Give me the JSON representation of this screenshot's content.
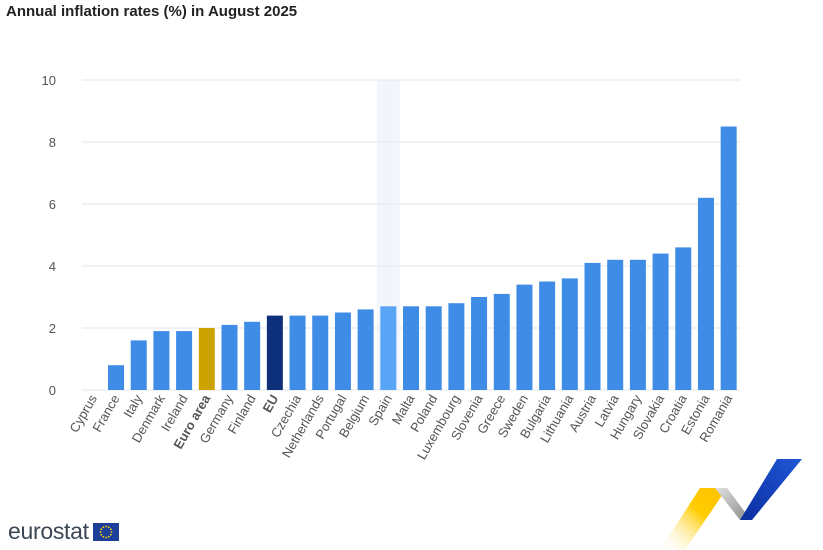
{
  "title": "Annual inflation rates (%) in August 2025",
  "logo": {
    "text": "eurostat"
  },
  "colors": {
    "country": "#3e8ce6",
    "euro_area": "#cca300",
    "eu": "#0e2f7a",
    "highlight": "#5aa4f5",
    "highlight_band": "#f3f5fc",
    "grid": "#e6e6e6"
  },
  "chart_data": {
    "type": "bar",
    "title": "Annual inflation rates (%) in August 2025",
    "xlabel": "",
    "ylabel": "",
    "ylim": [
      0,
      10
    ],
    "yticks": [
      0,
      2,
      4,
      6,
      8,
      10
    ],
    "grid": true,
    "highlighted_category": "Spain",
    "bold_categories": [
      "Euro area",
      "EU"
    ],
    "categories": [
      "Cyprus",
      "France",
      "Italy",
      "Denmark",
      "Ireland",
      "Euro area",
      "Germany",
      "Finland",
      "EU",
      "Czechia",
      "Netherlands",
      "Portugal",
      "Belgium",
      "Spain",
      "Malta",
      "Poland",
      "Luxembourg",
      "Slovenia",
      "Greece",
      "Sweden",
      "Bulgaria",
      "Lithuania",
      "Austria",
      "Latvia",
      "Hungary",
      "Slovakia",
      "Croatia",
      "Estonia",
      "Romania"
    ],
    "values": [
      0.0,
      0.8,
      1.6,
      1.9,
      1.9,
      2.0,
      2.1,
      2.2,
      2.4,
      2.4,
      2.4,
      2.5,
      2.6,
      2.7,
      2.7,
      2.7,
      2.8,
      3.0,
      3.1,
      3.4,
      3.5,
      3.6,
      4.1,
      4.2,
      4.2,
      4.4,
      4.6,
      6.2,
      8.5
    ]
  }
}
